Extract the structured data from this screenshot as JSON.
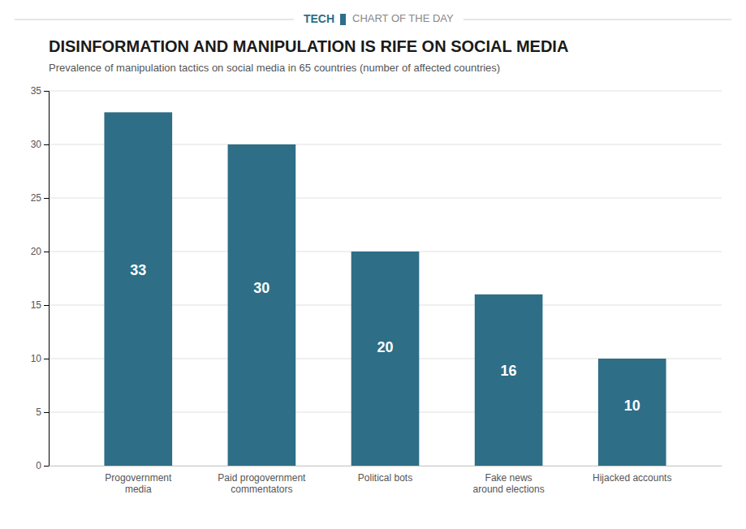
{
  "chart_data": {
    "type": "bar",
    "title": "DISINFORMATION AND MANIPULATION IS RIFE ON SOCIAL MEDIA",
    "subtitle": "Prevalence of manipulation tactics on social media in 65 countries (number of affected countries)",
    "annotations": [
      "TECH",
      "CHART OF THE DAY"
    ],
    "categories": [
      "Progovernment\nmedia",
      "Paid progovernment\ncommentators",
      "Political bots",
      "Fake news\naround elections",
      "Hijacked accounts"
    ],
    "values": [
      33,
      30,
      20,
      16,
      10
    ],
    "color": "#2e6e87",
    "ylim": [
      0,
      35
    ],
    "yticks": [
      0,
      5,
      10,
      15,
      20,
      25,
      30,
      35
    ],
    "grid": true,
    "data_labels": true
  }
}
